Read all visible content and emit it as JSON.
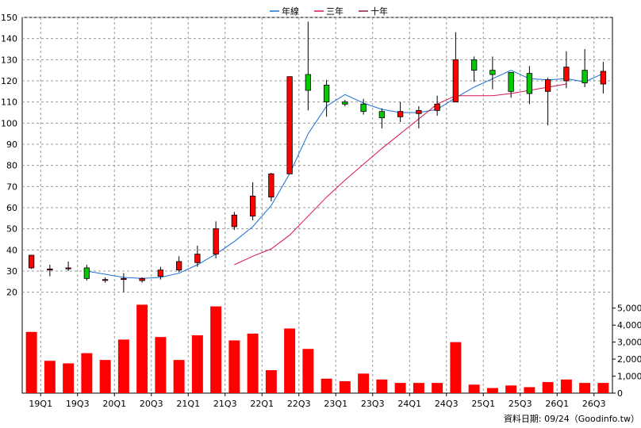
{
  "chart_data": {
    "type": "candlestick+bar",
    "legend": [
      {
        "name": "年線",
        "color": "#1a6fd4"
      },
      {
        "name": "三年",
        "color": "#d8174d"
      },
      {
        "name": "十年",
        "color": "#8b1a3a"
      }
    ],
    "legend_position": "top-center",
    "grid": true,
    "price_axis": {
      "ylim": [
        15,
        150
      ],
      "ticks": [
        20,
        30,
        40,
        50,
        60,
        70,
        80,
        90,
        100,
        110,
        120,
        130,
        140,
        150
      ]
    },
    "volume_axis": {
      "ylim": [
        0,
        5500
      ],
      "ticks": [
        0,
        1000,
        2000,
        3000,
        4000,
        5000
      ],
      "tick_labels": [
        "0",
        "1,000",
        "2,000",
        "3,000",
        "4,000",
        "5,000"
      ]
    },
    "x_tick_labels": [
      "19Q1",
      "19Q3",
      "20Q1",
      "20Q3",
      "21Q1",
      "21Q3",
      "22Q1",
      "22Q3",
      "23Q1",
      "23Q3",
      "24Q1",
      "24Q3",
      "25Q1",
      "25Q3",
      "26Q1",
      "26Q3"
    ],
    "x_tick_index": [
      1,
      3,
      5,
      7,
      9,
      11,
      13,
      15,
      17,
      19,
      21,
      23,
      25,
      27,
      29,
      31
    ],
    "candles": [
      {
        "o": 31.5,
        "h": 37.5,
        "l": 31,
        "c": 37.5
      },
      {
        "o": 30.5,
        "h": 33,
        "l": 27.5,
        "c": 31
      },
      {
        "o": 31.5,
        "h": 34.5,
        "l": 30,
        "c": 31.5
      },
      {
        "o": 31.5,
        "h": 33,
        "l": 25.5,
        "c": 26.5
      },
      {
        "o": 26,
        "h": 27,
        "l": 24.5,
        "c": 26
      },
      {
        "o": 26,
        "h": 29,
        "l": 20,
        "c": 26.5
      },
      {
        "o": 25.5,
        "h": 27,
        "l": 24.5,
        "c": 26.5
      },
      {
        "o": 27.5,
        "h": 32,
        "l": 26,
        "c": 30.5
      },
      {
        "o": 30.5,
        "h": 37,
        "l": 29.5,
        "c": 34.5
      },
      {
        "o": 34,
        "h": 42,
        "l": 32,
        "c": 38
      },
      {
        "o": 38,
        "h": 53.5,
        "l": 36,
        "c": 50
      },
      {
        "o": 51,
        "h": 58,
        "l": 49.5,
        "c": 56.5
      },
      {
        "o": 56,
        "h": 72,
        "l": 54,
        "c": 65.5
      },
      {
        "o": 65,
        "h": 76.5,
        "l": 63,
        "c": 76
      },
      {
        "o": 76,
        "h": 122,
        "l": 76,
        "c": 122
      },
      {
        "o": 123,
        "h": 148,
        "l": 106,
        "c": 115.5
      },
      {
        "o": 118,
        "h": 120.5,
        "l": 103,
        "c": 110
      },
      {
        "o": 110,
        "h": 111,
        "l": 108,
        "c": 109
      },
      {
        "o": 109,
        "h": 111.5,
        "l": 104,
        "c": 105.5
      },
      {
        "o": 105.5,
        "h": 107,
        "l": 97.5,
        "c": 102.5
      },
      {
        "o": 103,
        "h": 110,
        "l": 100.5,
        "c": 105.5
      },
      {
        "o": 104.5,
        "h": 108,
        "l": 97.5,
        "c": 106
      },
      {
        "o": 106,
        "h": 113,
        "l": 103.5,
        "c": 109
      },
      {
        "o": 110,
        "h": 143,
        "l": 110,
        "c": 130
      },
      {
        "o": 130,
        "h": 131.5,
        "l": 119.5,
        "c": 125
      },
      {
        "o": 125,
        "h": 131.5,
        "l": 116,
        "c": 123
      },
      {
        "o": 124,
        "h": 124,
        "l": 112,
        "c": 115
      },
      {
        "o": 123.5,
        "h": 127,
        "l": 109,
        "c": 114
      },
      {
        "o": 115,
        "h": 121.5,
        "l": 99,
        "c": 120.5
      },
      {
        "o": 120,
        "h": 134,
        "l": 116.5,
        "c": 126.5
      },
      {
        "o": 125,
        "h": 135,
        "l": 117,
        "c": 119
      },
      {
        "o": 118.5,
        "h": 129,
        "l": 114,
        "c": 124.5
      }
    ],
    "volume": [
      3600,
      1900,
      1750,
      2350,
      1950,
      3150,
      5200,
      3300,
      1950,
      3400,
      5100,
      3100,
      3500,
      1350,
      3800,
      2600,
      850,
      700,
      1150,
      800,
      600,
      600,
      600,
      3000,
      500,
      300,
      450,
      350,
      650,
      800,
      600,
      600
    ],
    "series": [
      {
        "name": "年線",
        "start_index": 3,
        "values": [
          30,
          28.5,
          27,
          26.5,
          27,
          29,
          33,
          38,
          44,
          51,
          61,
          76,
          95,
          108,
          113.5,
          109.5,
          106.5,
          105,
          105,
          106.5,
          112,
          117,
          121,
          125,
          121,
          120.5,
          121,
          119.5,
          123.5
        ]
      },
      {
        "name": "三年",
        "start_index": 11,
        "values": [
          33,
          37,
          40.5,
          47,
          56,
          65,
          73,
          80.5,
          88,
          95,
          102,
          109,
          113,
          113,
          113,
          114,
          115.5,
          117,
          118.5
        ]
      }
    ],
    "source_note": "資料日期: 09/24（Goodinfo.tw）"
  }
}
